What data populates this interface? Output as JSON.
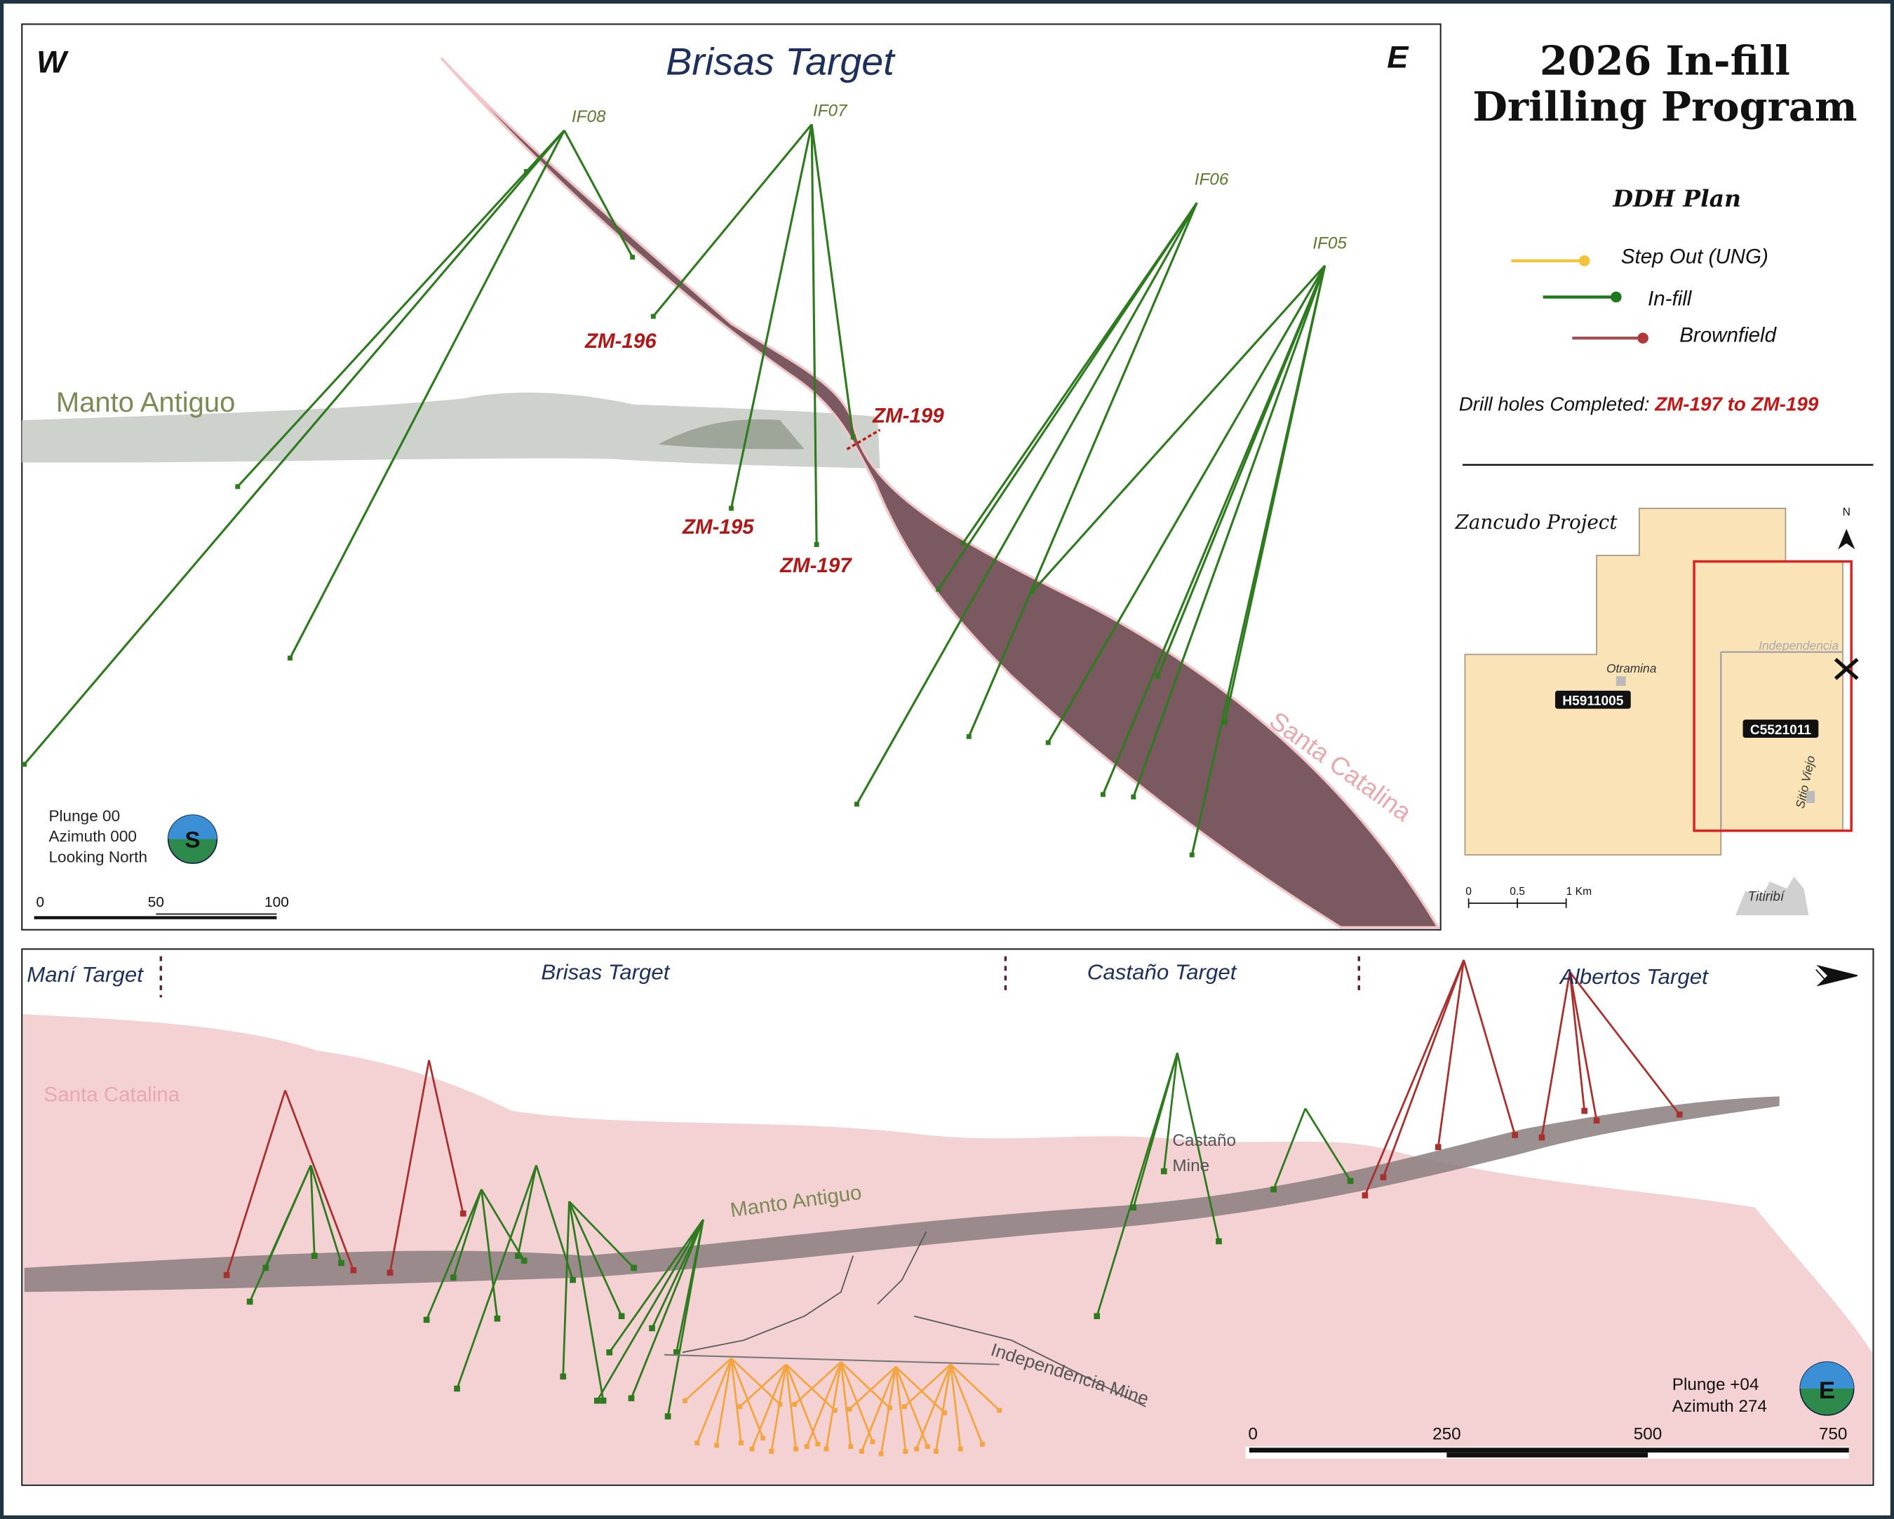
{
  "top_section": {
    "west": "W",
    "east": "E",
    "title": "Brisas Target",
    "hole_labels": [
      "IF08",
      "IF07",
      "IF06",
      "IF05"
    ],
    "completed_labels": [
      "ZM-196",
      "ZM-199",
      "ZM-195",
      "ZM-197"
    ],
    "unit_labels": [
      "Manto Antiguo",
      "Santa Catalina"
    ],
    "view": [
      "Plunge 00",
      "Azimuth 000",
      "Looking North"
    ],
    "compass": "S",
    "scale": [
      0,
      50,
      100
    ]
  },
  "sidebar": {
    "title": [
      "2026 In-fill",
      "Drilling Program"
    ],
    "legend_title": "DDH Plan",
    "legend": [
      "Step Out (UNG)",
      "In-fill",
      "Brownfield"
    ],
    "completed_prefix": "Drill holes Completed: ",
    "completed_range": "ZM-197 to ZM-199"
  },
  "inset_map": {
    "title": "Zancudo Project",
    "north": "N",
    "places": [
      "Otramina",
      "Independencia",
      "Sitio Viejo",
      "Titiribí"
    ],
    "claims": [
      "H5911005",
      "C5521011"
    ],
    "scale": [
      0,
      0.5,
      "1 Km"
    ]
  },
  "bottom_section": {
    "targets": [
      "Maní Target",
      "Brisas Target",
      "Castaño Target",
      "Albertos Target"
    ],
    "unit_labels": [
      "Santa Catalina",
      "Manto Antiguo"
    ],
    "mines": [
      "Castaño",
      "Mine",
      "Independencia Mine"
    ],
    "view": [
      "Plunge +04",
      "Azimuth 274"
    ],
    "compass": "E",
    "scale": [
      0,
      250,
      500,
      750
    ]
  }
}
